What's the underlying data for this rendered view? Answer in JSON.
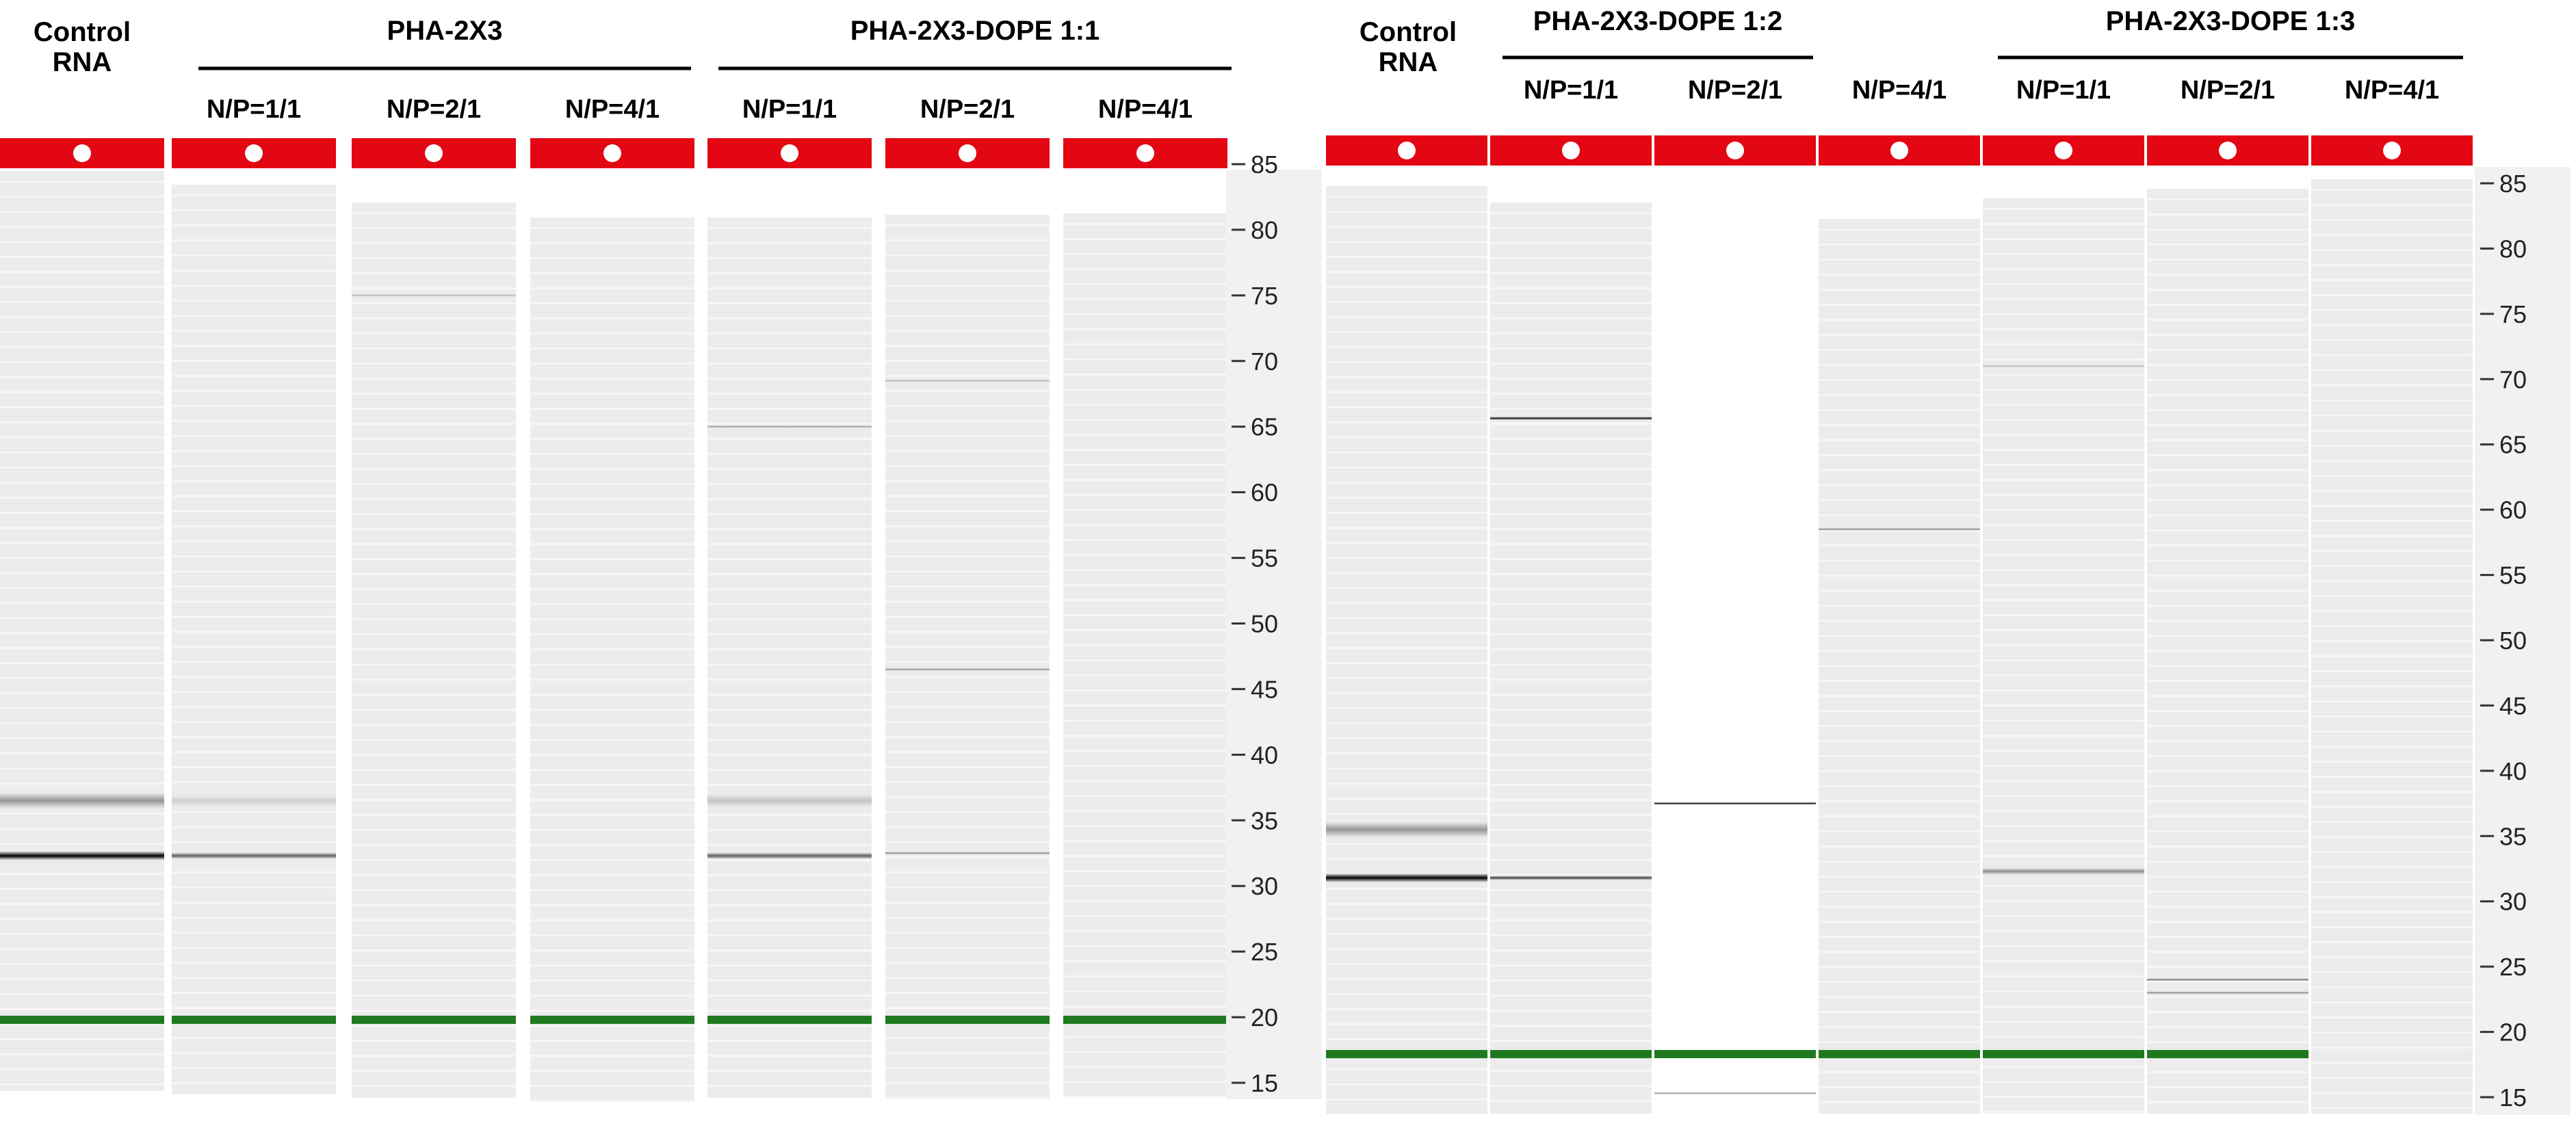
{
  "panels": [
    {
      "control_label": [
        "Control",
        "RNA"
      ],
      "groups": [
        {
          "title": "PHA-2X3",
          "lanes": [
            "N/P=1/1",
            "N/P=2/1",
            "N/P=4/1"
          ]
        },
        {
          "title": "PHA-2X3-DOPE 1:1",
          "lanes": [
            "N/P=1/1",
            "N/P=2/1",
            "N/P=4/1"
          ]
        }
      ],
      "ticks": [
        "85",
        "80",
        "75",
        "70",
        "65",
        "60",
        "55",
        "50",
        "45",
        "40",
        "35",
        "30",
        "25",
        "20",
        "15"
      ],
      "lanes": [
        {
          "name": "Control RNA",
          "bands": [
            {
              "pos": 36.5,
              "intensity": 0.35,
              "width": 1.2
            },
            {
              "pos": 32.3,
              "intensity": 1.0,
              "width": 0.7
            }
          ]
        },
        {
          "name": "PHA-2X3 N/P=1/1",
          "bands": [
            {
              "pos": 36.5,
              "intensity": 0.1,
              "width": 1.0
            },
            {
              "pos": 32.3,
              "intensity": 0.6,
              "width": 0.5
            }
          ]
        },
        {
          "name": "PHA-2X3 N/P=2/1",
          "bands": [
            {
              "pos": 75.0,
              "intensity": 0.2,
              "width": 0.15
            }
          ]
        },
        {
          "name": "PHA-2X3 N/P=4/1",
          "bands": []
        },
        {
          "name": "DOPE 1:1 N/P=1/1",
          "bands": [
            {
              "pos": 65.0,
              "intensity": 0.3,
              "width": 0.15
            },
            {
              "pos": 36.5,
              "intensity": 0.15,
              "width": 1.0
            },
            {
              "pos": 32.3,
              "intensity": 0.6,
              "width": 0.5
            }
          ]
        },
        {
          "name": "DOPE 1:1 N/P=2/1",
          "bands": [
            {
              "pos": 68.5,
              "intensity": 0.2,
              "width": 0.15
            },
            {
              "pos": 46.5,
              "intensity": 0.35,
              "width": 0.15
            },
            {
              "pos": 32.5,
              "intensity": 0.4,
              "width": 0.15
            }
          ]
        },
        {
          "name": "DOPE 1:1 N/P=4/1",
          "bands": []
        }
      ]
    },
    {
      "control_label": [
        "Control",
        "RNA"
      ],
      "groups": [
        {
          "title": "PHA-2X3-DOPE 1:2",
          "lanes": [
            "N/P=1/1",
            "N/P=2/1",
            "N/P=4/1"
          ]
        },
        {
          "title": "PHA-2X3-DOPE 1:3",
          "lanes": [
            "N/P=1/1",
            "N/P=2/1",
            "N/P=4/1"
          ]
        }
      ],
      "ticks": [
        "85",
        "80",
        "75",
        "70",
        "65",
        "60",
        "55",
        "50",
        "45",
        "40",
        "35",
        "30",
        "25",
        "20",
        "15"
      ],
      "lanes": [
        {
          "name": "Control RNA",
          "bands": [
            {
              "pos": 35.5,
              "intensity": 0.35,
              "width": 1.2
            },
            {
              "pos": 31.8,
              "intensity": 1.0,
              "width": 0.7
            }
          ]
        },
        {
          "name": "DOPE 1:2 N/P=1/1",
          "bands": [
            {
              "pos": 67.0,
              "intensity": 0.95,
              "width": 0.25
            },
            {
              "pos": 31.8,
              "intensity": 0.7,
              "width": 0.35
            }
          ]
        },
        {
          "name": "DOPE 1:2 N/P=2/1",
          "bands": [
            {
              "pos": 37.5,
              "intensity": 0.95,
              "width": 0.2
            },
            {
              "pos": 15.3,
              "intensity": 0.3,
              "width": 0.15
            }
          ]
        },
        {
          "name": "DOPE 1:2 N/P=4/1",
          "bands": [
            {
              "pos": 58.5,
              "intensity": 0.4,
              "width": 0.2
            }
          ]
        },
        {
          "name": "DOPE 1:3 N/P=1/1",
          "bands": [
            {
              "pos": 71.0,
              "intensity": 0.2,
              "width": 0.15
            },
            {
              "pos": 32.3,
              "intensity": 0.4,
              "width": 0.5
            }
          ]
        },
        {
          "name": "DOPE 1:3 N/P=2/1",
          "bands": [
            {
              "pos": 24.0,
              "intensity": 0.5,
              "width": 0.2
            },
            {
              "pos": 23.0,
              "intensity": 0.4,
              "width": 0.2
            }
          ]
        },
        {
          "name": "DOPE 1:3 N/P=4/1",
          "bands": []
        }
      ]
    }
  ],
  "colors": {
    "well_bar": "#e30613",
    "marker": "#1f7a1f",
    "well_dot": "#ffffff"
  }
}
